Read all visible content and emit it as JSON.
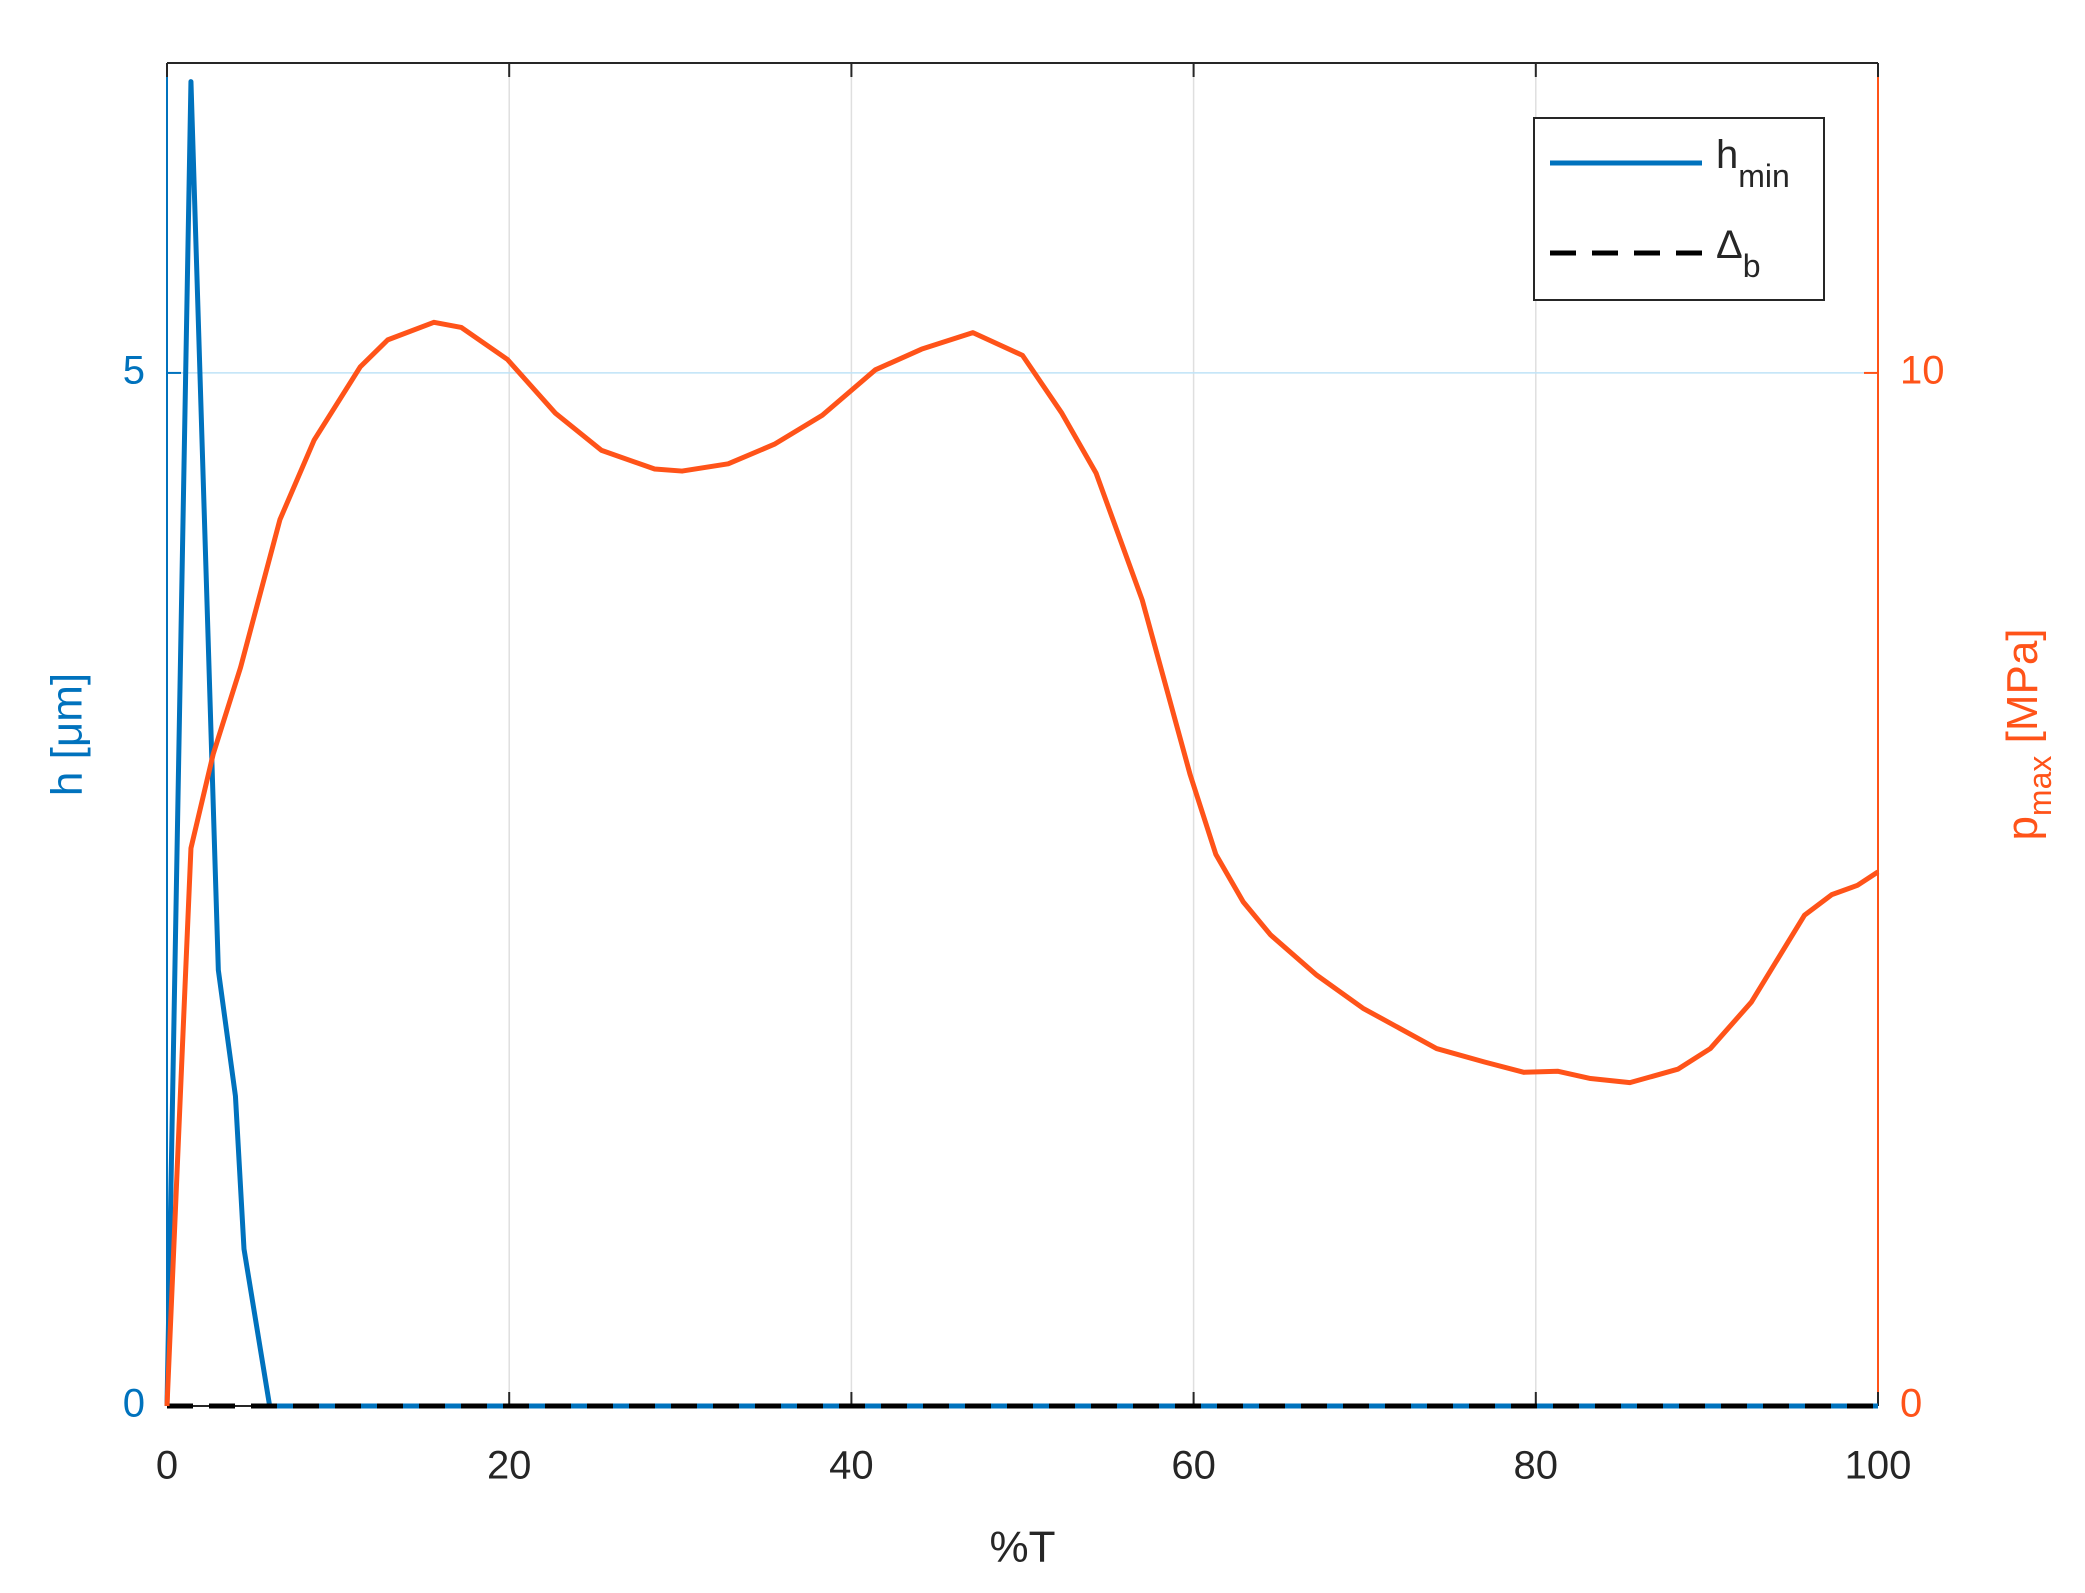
{
  "chart_data": {
    "type": "line",
    "xlabel": "%T",
    "ylabel": "h [μm]",
    "y2label": {
      "main": "p",
      "subscript": "max",
      "rest": " [MPa]"
    },
    "xlim": [
      0,
      100
    ],
    "xticks": [
      0,
      20,
      40,
      60,
      80,
      100
    ],
    "ylim": [
      0,
      6.5
    ],
    "yticks": [
      0,
      5
    ],
    "y2lim": [
      0,
      13
    ],
    "y2ticks": [
      0,
      10
    ],
    "grid": true,
    "legend": "upper right",
    "left_axis_color": "#0072bd",
    "right_axis_color": "#ff5319",
    "series": [
      {
        "name": "h",
        "subscript": "min",
        "color": "#0072bd",
        "dash": false,
        "x": [
          0,
          1.4,
          3,
          4,
          4.5,
          6,
          100
        ],
        "values": [
          0,
          6.41,
          2.11,
          1.5,
          0.76,
          0,
          0
        ]
      },
      {
        "name": "Δ",
        "subscript": "b",
        "color": "#000000",
        "dash": true,
        "x": [
          0,
          100
        ],
        "values": [
          0,
          0
        ]
      },
      {
        "color": "#ff5319",
        "dash": false,
        "axis": "y2",
        "x": [
          0,
          1.4,
          2.7,
          4.3,
          6.6,
          8.6,
          11.3,
          12.9,
          15.6,
          17.2,
          19.9,
          22.7,
          25.4,
          28.5,
          30.1,
          32.8,
          35.5,
          38.3,
          41.4,
          44.1,
          47.1,
          50.0,
          52.3,
          54.3,
          57.0,
          59.8,
          61.3,
          62.9,
          64.5,
          67.2,
          69.9,
          74.2,
          77.0,
          79.3,
          81.3,
          83.2,
          85.5,
          88.3,
          90.2,
          92.6,
          95.7,
          97.3,
          98.8,
          100
        ],
        "values": [
          0,
          5.4,
          6.31,
          7.15,
          8.58,
          9.35,
          10.06,
          10.32,
          10.49,
          10.44,
          10.13,
          9.61,
          9.25,
          9.07,
          9.05,
          9.12,
          9.31,
          9.59,
          10.03,
          10.23,
          10.39,
          10.17,
          9.61,
          9.03,
          7.8,
          6.11,
          5.34,
          4.88,
          4.56,
          4.17,
          3.85,
          3.46,
          3.33,
          3.23,
          3.24,
          3.17,
          3.13,
          3.26,
          3.46,
          3.91,
          4.75,
          4.95,
          5.04,
          5.17
        ]
      }
    ]
  }
}
